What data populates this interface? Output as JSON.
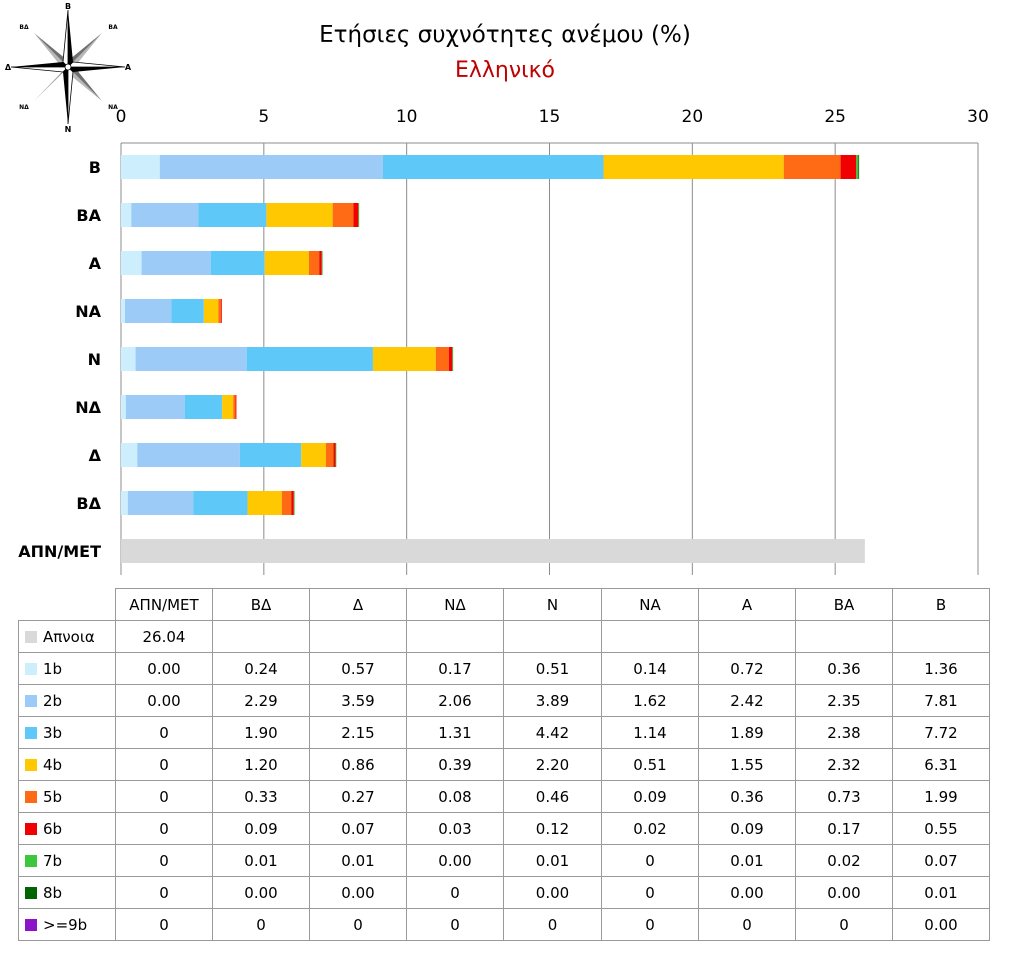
{
  "title": "Ετήσιες συχνότητες ανέμου (%)",
  "subtitle": "Ελληνικό",
  "compass": {
    "n": "Β",
    "ne": "ΒΑ",
    "e": "Α",
    "se": "ΝΑ",
    "s": "Ν",
    "sw": "ΝΔ",
    "w": "Δ",
    "nw": "ΒΔ"
  },
  "chart_data": {
    "type": "bar",
    "orientation": "horizontal",
    "stacked": true,
    "title": "Ετήσιες συχνότητες ανέμου (%)",
    "subtitle": "Ελληνικό",
    "categories": [
      "Β",
      "ΒΑ",
      "Α",
      "ΝΑ",
      "Ν",
      "ΝΔ",
      "Δ",
      "ΒΔ",
      "ΑΠΝ/ΜΕΤ"
    ],
    "xlim": [
      0,
      30
    ],
    "xticks": [
      0,
      5,
      10,
      15,
      20,
      25,
      30
    ],
    "x_axis_position": "top",
    "grid": true,
    "series": [
      {
        "name": "Απνοια",
        "color": "#d9d9d9",
        "values": [
          0,
          0,
          0,
          0,
          0,
          0,
          0,
          0,
          26.04
        ]
      },
      {
        "name": "1b",
        "color": "#cdeefc",
        "values": [
          1.36,
          0.36,
          0.72,
          0.14,
          0.51,
          0.17,
          0.57,
          0.24,
          0
        ]
      },
      {
        "name": "2b",
        "color": "#9ccbf7",
        "values": [
          7.81,
          2.35,
          2.42,
          1.62,
          3.89,
          2.06,
          3.59,
          2.29,
          0
        ]
      },
      {
        "name": "3b",
        "color": "#5ec8f8",
        "values": [
          7.72,
          2.38,
          1.89,
          1.14,
          4.42,
          1.31,
          2.15,
          1.9,
          0
        ]
      },
      {
        "name": "4b",
        "color": "#ffc800",
        "values": [
          6.31,
          2.32,
          1.55,
          0.51,
          2.2,
          0.39,
          0.86,
          1.2,
          0
        ]
      },
      {
        "name": "5b",
        "color": "#ff6a14",
        "values": [
          1.99,
          0.73,
          0.36,
          0.09,
          0.46,
          0.08,
          0.27,
          0.33,
          0
        ]
      },
      {
        "name": "6b",
        "color": "#f00000",
        "values": [
          0.55,
          0.17,
          0.09,
          0.02,
          0.12,
          0.03,
          0.07,
          0.09,
          0
        ]
      },
      {
        "name": "7b",
        "color": "#3cc83c",
        "values": [
          0.07,
          0.02,
          0.01,
          0,
          0.01,
          0,
          0.01,
          0.01,
          0
        ]
      },
      {
        "name": "8b",
        "color": "#006400",
        "values": [
          0.01,
          0,
          0,
          0,
          0,
          0,
          0,
          0,
          0
        ]
      },
      {
        "name": ">=9b",
        "color": "#8c14c8",
        "values": [
          0,
          0,
          0,
          0,
          0,
          0,
          0,
          0,
          0
        ]
      }
    ]
  },
  "table": {
    "columns": [
      "ΑΠΝ/ΜΕΤ",
      "ΒΔ",
      "Δ",
      "ΝΔ",
      "Ν",
      "ΝΑ",
      "Α",
      "ΒΑ",
      "Β"
    ],
    "rows": [
      {
        "label": "Απνοια",
        "color": "#d9d9d9",
        "cells": [
          "26.04",
          "",
          "",
          "",
          "",
          "",
          "",
          "",
          ""
        ]
      },
      {
        "label": "1b",
        "color": "#cdeefc",
        "cells": [
          "0.00",
          "0.24",
          "0.57",
          "0.17",
          "0.51",
          "0.14",
          "0.72",
          "0.36",
          "1.36"
        ]
      },
      {
        "label": "2b",
        "color": "#9ccbf7",
        "cells": [
          "0.00",
          "2.29",
          "3.59",
          "2.06",
          "3.89",
          "1.62",
          "2.42",
          "2.35",
          "7.81"
        ]
      },
      {
        "label": "3b",
        "color": "#5ec8f8",
        "cells": [
          "0",
          "1.90",
          "2.15",
          "1.31",
          "4.42",
          "1.14",
          "1.89",
          "2.38",
          "7.72"
        ]
      },
      {
        "label": "4b",
        "color": "#ffc800",
        "cells": [
          "0",
          "1.20",
          "0.86",
          "0.39",
          "2.20",
          "0.51",
          "1.55",
          "2.32",
          "6.31"
        ]
      },
      {
        "label": "5b",
        "color": "#ff6a14",
        "cells": [
          "0",
          "0.33",
          "0.27",
          "0.08",
          "0.46",
          "0.09",
          "0.36",
          "0.73",
          "1.99"
        ]
      },
      {
        "label": "6b",
        "color": "#f00000",
        "cells": [
          "0",
          "0.09",
          "0.07",
          "0.03",
          "0.12",
          "0.02",
          "0.09",
          "0.17",
          "0.55"
        ]
      },
      {
        "label": "7b",
        "color": "#3cc83c",
        "cells": [
          "0",
          "0.01",
          "0.01",
          "0.00",
          "0.01",
          "0",
          "0.01",
          "0.02",
          "0.07"
        ]
      },
      {
        "label": "8b",
        "color": "#006400",
        "cells": [
          "0",
          "0.00",
          "0.00",
          "0",
          "0.00",
          "0",
          "0.00",
          "0.00",
          "0.01"
        ]
      },
      {
        "label": ">=9b",
        "color": "#8c14c8",
        "cells": [
          "0",
          "0",
          "0",
          "0",
          "0",
          "0",
          "0",
          "0",
          "0.00"
        ]
      }
    ]
  }
}
